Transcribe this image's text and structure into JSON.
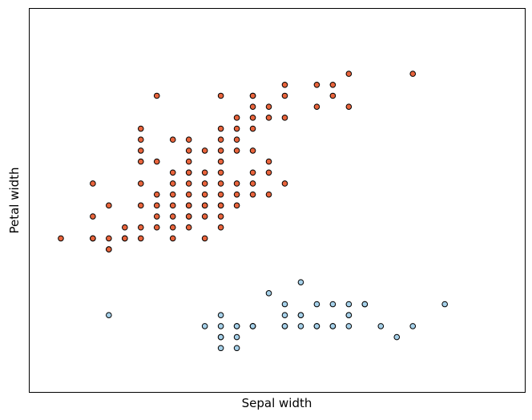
{
  "chart_data": {
    "type": "scatter",
    "title": "",
    "xlabel": "Sepal width",
    "ylabel": "Petal width",
    "xlim": [
      1.8,
      4.9
    ],
    "ylim": [
      -0.4,
      3.1
    ],
    "xticks": [],
    "yticks": [],
    "grid": false,
    "series": [
      {
        "color": "#e8643c",
        "edge_color": "#000000",
        "points": [
          [
            4.2,
            2.5
          ],
          [
            3.8,
            2.5
          ],
          [
            3.7,
            2.3
          ],
          [
            3.7,
            2.4
          ],
          [
            3.2,
            2.3
          ],
          [
            3.4,
            2.4
          ],
          [
            3.2,
            2.2
          ],
          [
            3.3,
            2.2
          ],
          [
            3.1,
            2.1
          ],
          [
            3.3,
            2.1
          ],
          [
            3.0,
            2.0
          ],
          [
            3.1,
            2.0
          ],
          [
            2.8,
            1.9
          ],
          [
            3.0,
            1.9
          ],
          [
            3.2,
            1.8
          ],
          [
            3.1,
            1.8
          ],
          [
            3.0,
            1.7
          ],
          [
            3.3,
            1.7
          ],
          [
            2.9,
            1.6
          ],
          [
            2.8,
            1.6
          ],
          [
            2.7,
            1.5
          ],
          [
            3.6,
            2.2
          ],
          [
            3.8,
            2.2
          ],
          [
            3.2,
            2.1
          ],
          [
            3.2,
            2.0
          ],
          [
            3.4,
            2.1
          ],
          [
            3.0,
            2.3
          ],
          [
            3.2,
            2.3
          ],
          [
            3.4,
            2.3
          ],
          [
            3.6,
            2.4
          ],
          [
            2.5,
            1.9
          ],
          [
            2.6,
            2.3
          ],
          [
            2.8,
            1.8
          ],
          [
            2.9,
            1.8
          ],
          [
            3.1,
            1.9
          ],
          [
            2.7,
            1.9
          ],
          [
            3.0,
            1.8
          ],
          [
            3.1,
            1.5
          ],
          [
            2.8,
            1.5
          ],
          [
            3.0,
            1.6
          ],
          [
            3.2,
            1.6
          ],
          [
            3.0,
            1.5
          ],
          [
            2.8,
            1.4
          ],
          [
            3.0,
            1.4
          ],
          [
            3.2,
            1.5
          ],
          [
            2.2,
            1.5
          ],
          [
            2.5,
            1.8
          ],
          [
            2.5,
            1.7
          ],
          [
            2.6,
            1.7
          ],
          [
            2.5,
            2.0
          ],
          [
            2.5,
            1.5
          ],
          [
            3.0,
            1.3
          ],
          [
            3.1,
            1.3
          ],
          [
            3.3,
            1.6
          ],
          [
            3.4,
            1.5
          ],
          [
            2.9,
            1.4
          ],
          [
            3.0,
            1.2
          ],
          [
            2.9,
            1.3
          ],
          [
            2.7,
            1.3
          ],
          [
            2.8,
            1.3
          ],
          [
            2.6,
            1.3
          ],
          [
            2.8,
            1.2
          ],
          [
            3.2,
            1.4
          ],
          [
            3.1,
            1.4
          ],
          [
            2.6,
            1.4
          ],
          [
            2.7,
            1.4
          ],
          [
            2.9,
            1.2
          ],
          [
            2.6,
            1.2
          ],
          [
            2.7,
            1.2
          ],
          [
            3.0,
            1.1
          ],
          [
            2.5,
            1.3
          ],
          [
            2.8,
            1.1
          ],
          [
            2.4,
            1.0
          ],
          [
            2.5,
            1.1
          ],
          [
            2.3,
            1.3
          ],
          [
            2.6,
            1.1
          ],
          [
            2.3,
            1.0
          ],
          [
            2.7,
            1.0
          ],
          [
            2.4,
            1.1
          ],
          [
            2.2,
            1.0
          ],
          [
            2.2,
            1.0
          ],
          [
            2.0,
            1.0
          ],
          [
            2.3,
            0.9
          ],
          [
            2.2,
            1.2
          ],
          [
            2.7,
            1.1
          ],
          [
            3.3,
            1.4
          ],
          [
            2.7,
            1.6
          ],
          [
            2.9,
            1.5
          ],
          [
            2.8,
            1.7
          ],
          [
            2.8,
            1.6
          ],
          [
            2.8,
            1.3
          ],
          [
            3.0,
            1.3
          ],
          [
            2.9,
            1.3
          ],
          [
            2.5,
            1.0
          ],
          [
            2.8,
            1.2
          ],
          [
            2.9,
            1.0
          ],
          [
            2.4,
            1.0
          ],
          [
            2.3,
            0.9
          ]
        ]
      },
      {
        "color": "#a6d1ea",
        "edge_color": "#000000",
        "points": [
          [
            3.5,
            0.2
          ],
          [
            3.0,
            0.2
          ],
          [
            3.2,
            0.2
          ],
          [
            3.1,
            0.2
          ],
          [
            3.6,
            0.2
          ],
          [
            3.9,
            0.4
          ],
          [
            3.4,
            0.3
          ],
          [
            3.4,
            0.2
          ],
          [
            2.9,
            0.2
          ],
          [
            3.1,
            0.1
          ],
          [
            3.7,
            0.2
          ],
          [
            3.0,
            0.1
          ],
          [
            4.0,
            0.2
          ],
          [
            4.4,
            0.4
          ],
          [
            3.8,
            0.3
          ],
          [
            3.5,
            0.3
          ],
          [
            3.8,
            0.3
          ],
          [
            3.7,
            0.4
          ],
          [
            3.6,
            0.2
          ],
          [
            3.3,
            0.5
          ],
          [
            3.4,
            0.4
          ],
          [
            3.2,
            0.2
          ],
          [
            3.1,
            0.2
          ],
          [
            4.1,
            0.1
          ],
          [
            4.2,
            0.2
          ],
          [
            3.5,
            0.6
          ],
          [
            3.8,
            0.4
          ],
          [
            3.0,
            0.3
          ],
          [
            3.8,
            0.2
          ],
          [
            3.2,
            0.2
          ],
          [
            3.0,
            0.1
          ],
          [
            3.4,
            0.2
          ],
          [
            2.3,
            0.3
          ],
          [
            3.5,
            0.3
          ],
          [
            3.6,
            0.4
          ],
          [
            3.9,
            0.4
          ],
          [
            3.7,
            0.2
          ],
          [
            3.0,
            0.0
          ],
          [
            3.1,
            0.0
          ]
        ]
      }
    ]
  }
}
